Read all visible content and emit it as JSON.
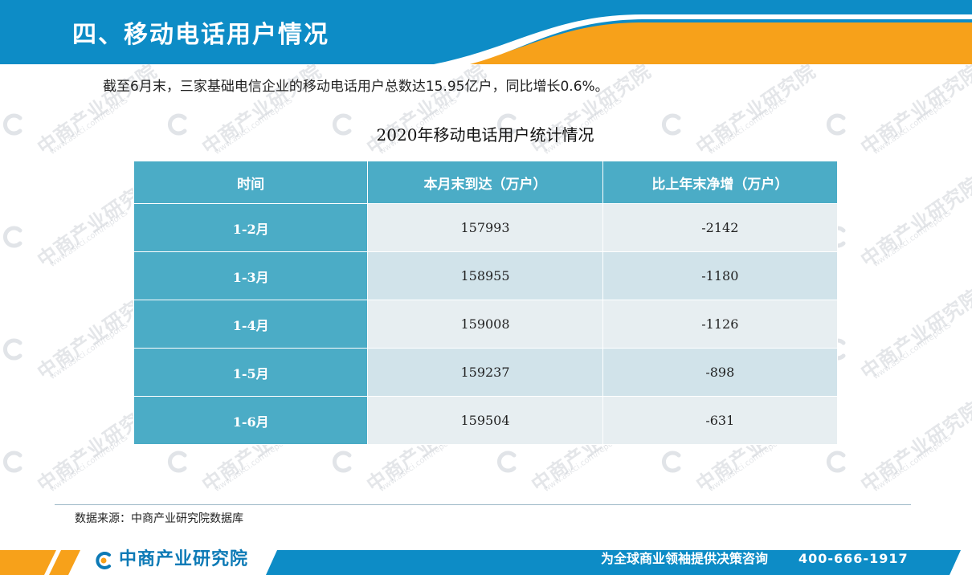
{
  "header": {
    "title": "四、移动电话用户情况"
  },
  "summary": "截至6月末，三家基础电信企业的移动电话用户总数达15.95亿户，同比增长0.6%。",
  "table": {
    "title": "2020年移动电话用户统计情况",
    "columns": [
      "时间",
      "本月末到达（万户）",
      "比上年末净增（万户）"
    ],
    "rows": [
      {
        "period": "1-2月",
        "reach": "157993",
        "net_increase": "-2142"
      },
      {
        "period": "1-3月",
        "reach": "158955",
        "net_increase": "-1180"
      },
      {
        "period": "1-4月",
        "reach": "159008",
        "net_increase": "-1126"
      },
      {
        "period": "1-5月",
        "reach": "159237",
        "net_increase": "-898"
      },
      {
        "period": "1-6月",
        "reach": "159504",
        "net_increase": "-631"
      }
    ]
  },
  "source": "数据来源：中商产业研究院数据库",
  "footer": {
    "logo_text": "中商产业研究院",
    "slogan": "为全球商业领袖提供决策咨询",
    "phone": "400-666-1917"
  },
  "watermark": {
    "main": "中商产业研究院",
    "sub": "www.askci.com/reports"
  },
  "colors": {
    "header_blue": "#0d8cc6",
    "header_orange": "#f7a11a",
    "table_header": "#4bacc6",
    "row_light": "#e7eef1",
    "row_dark": "#d1e3ea",
    "footer_blue": "#0d7ab6"
  },
  "icons": {
    "logo": "askci-logo-icon"
  }
}
